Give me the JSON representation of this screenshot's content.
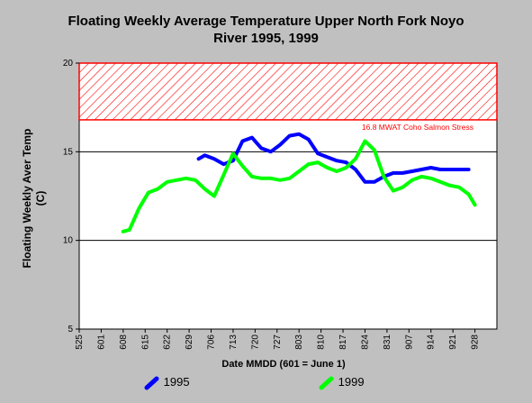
{
  "title_line1": "Floating Weekly Average Temperature Upper North Fork Noyo",
  "title_line2": "River 1995, 1999",
  "colors": {
    "background": "#c0c0c0",
    "plot_area": "#ffffff",
    "stress_band": "#ff0000",
    "series_1995": "#0000ff",
    "series_1999": "#00ff00"
  },
  "chart_data": {
    "type": "line",
    "title": "Floating Weekly Average Temperature Upper North Fork Noyo River 1995, 1999",
    "xlabel": "Date MMDD (601 = June 1)",
    "ylabel": "Floating Weekly Aver Temp (C)",
    "x_tick_labels": [
      "525",
      "601",
      "608",
      "615",
      "622",
      "629",
      "706",
      "713",
      "720",
      "727",
      "803",
      "810",
      "817",
      "824",
      "831",
      "907",
      "914",
      "921",
      "928"
    ],
    "y_tick_labels": [
      "5",
      "10",
      "15",
      "20"
    ],
    "ylim": [
      5,
      20
    ],
    "x_unit": "day index, 0 = May 25 (525)",
    "grid": "horizontal at 10, 15",
    "legend": "bottom",
    "threshold": {
      "value": 16.8,
      "label": "16.8 MWAT Coho Salmon Stress",
      "band_upper": 20
    },
    "series": [
      {
        "name": "1995",
        "color": "#0000ff",
        "x": [
          38,
          40,
          43,
          46,
          49,
          52,
          55,
          58,
          61,
          64,
          67,
          70,
          73,
          76,
          79,
          82,
          85,
          88,
          91,
          94,
          97,
          100,
          103,
          106,
          109,
          112,
          115,
          118,
          121,
          124
        ],
        "y": [
          14.6,
          14.8,
          14.6,
          14.3,
          14.5,
          15.6,
          15.8,
          15.2,
          15.0,
          15.4,
          15.9,
          16.0,
          15.7,
          14.9,
          14.7,
          14.5,
          14.4,
          14.0,
          13.3,
          13.3,
          13.6,
          13.8,
          13.8,
          13.9,
          14.0,
          14.1,
          14.0,
          14.0,
          14.0,
          14.0
        ]
      },
      {
        "name": "1999",
        "color": "#00ff00",
        "x": [
          14,
          16,
          19,
          22,
          25,
          28,
          31,
          34,
          37,
          40,
          43,
          46,
          49,
          52,
          55,
          58,
          61,
          64,
          67,
          70,
          73,
          76,
          79,
          82,
          85,
          88,
          91,
          94,
          97,
          100,
          103,
          106,
          109,
          112,
          115,
          118,
          121,
          124,
          126
        ],
        "y": [
          10.5,
          10.6,
          11.8,
          12.7,
          12.9,
          13.3,
          13.4,
          13.5,
          13.4,
          12.9,
          12.5,
          13.7,
          14.9,
          14.2,
          13.6,
          13.5,
          13.5,
          13.4,
          13.5,
          13.9,
          14.3,
          14.4,
          14.1,
          13.9,
          14.1,
          14.6,
          15.6,
          15.1,
          13.6,
          12.8,
          13.0,
          13.4,
          13.6,
          13.5,
          13.3,
          13.1,
          13.0,
          12.6,
          12.0
        ]
      }
    ]
  }
}
